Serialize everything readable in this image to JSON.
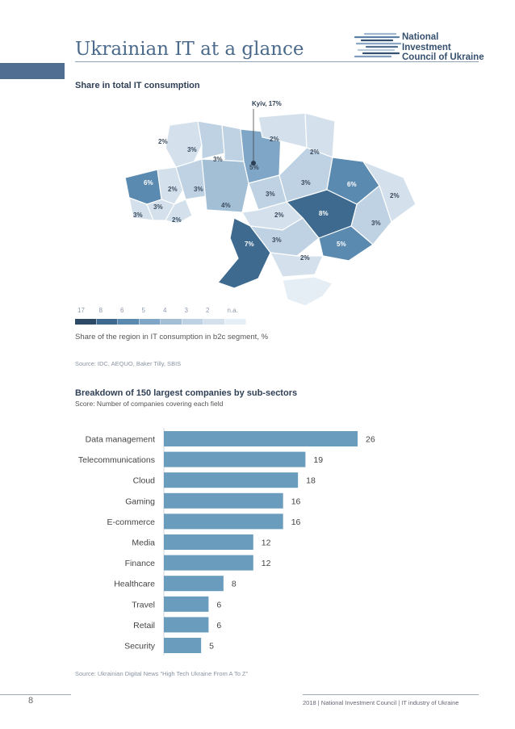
{
  "header": {
    "title": "Ukrainian IT at a glance",
    "logo_lines": [
      "National",
      "Investment",
      "Council of Ukraine"
    ]
  },
  "map_section": {
    "title": "Share in total IT consumption",
    "kyiv_label": "Kyiv, 17%",
    "region_labels": [
      "2%",
      "3%",
      "3%",
      "5%",
      "2%",
      "2%",
      "6%",
      "2%",
      "3%",
      "4%",
      "3%",
      "3%",
      "6%",
      "2%",
      "3%",
      "3%",
      "2%",
      "2%",
      "8%",
      "3%",
      "3%",
      "7%",
      "5%",
      "2%"
    ],
    "legend_values": [
      "17",
      "8",
      "6",
      "5",
      "4",
      "3",
      "2",
      "n.a."
    ],
    "legend_colors": [
      "#2c4a66",
      "#3d6a8e",
      "#5b8ab0",
      "#7fa6c6",
      "#a2bfd6",
      "#bfd2e3",
      "#d4e1ec",
      "#e6eef5"
    ],
    "caption": "Share of the region in IT consumption in b2c segment, %",
    "source": "Source: IDC, AEQUO, Baker Tilly, SBIS"
  },
  "chart_section": {
    "title": "Breakdown of 150 largest companies by sub-sectors",
    "subtitle": "Score: Number of companies covering each field",
    "source": "Source: Ukrainian Digital News \"High Tech Ukraine From A To Z\""
  },
  "chart_data": {
    "type": "bar",
    "orientation": "horizontal",
    "title": "Breakdown of 150 largest companies by sub-sectors",
    "subtitle": "Score: Number of companies covering each field",
    "categories": [
      "Data management",
      "Telecommunications",
      "Cloud",
      "Gaming",
      "E-commerce",
      "Media",
      "Finance",
      "Healthcare",
      "Travel",
      "Retail",
      "Security"
    ],
    "values": [
      26,
      19,
      18,
      16,
      16,
      12,
      12,
      8,
      6,
      6,
      5
    ],
    "xlim": [
      0,
      26
    ],
    "bar_color": "#6a9cbd",
    "grid": false,
    "data_labels": true
  },
  "footer": {
    "page_number": "8",
    "text": "2018 | National Investment Council | IT industry of Ukraine"
  }
}
